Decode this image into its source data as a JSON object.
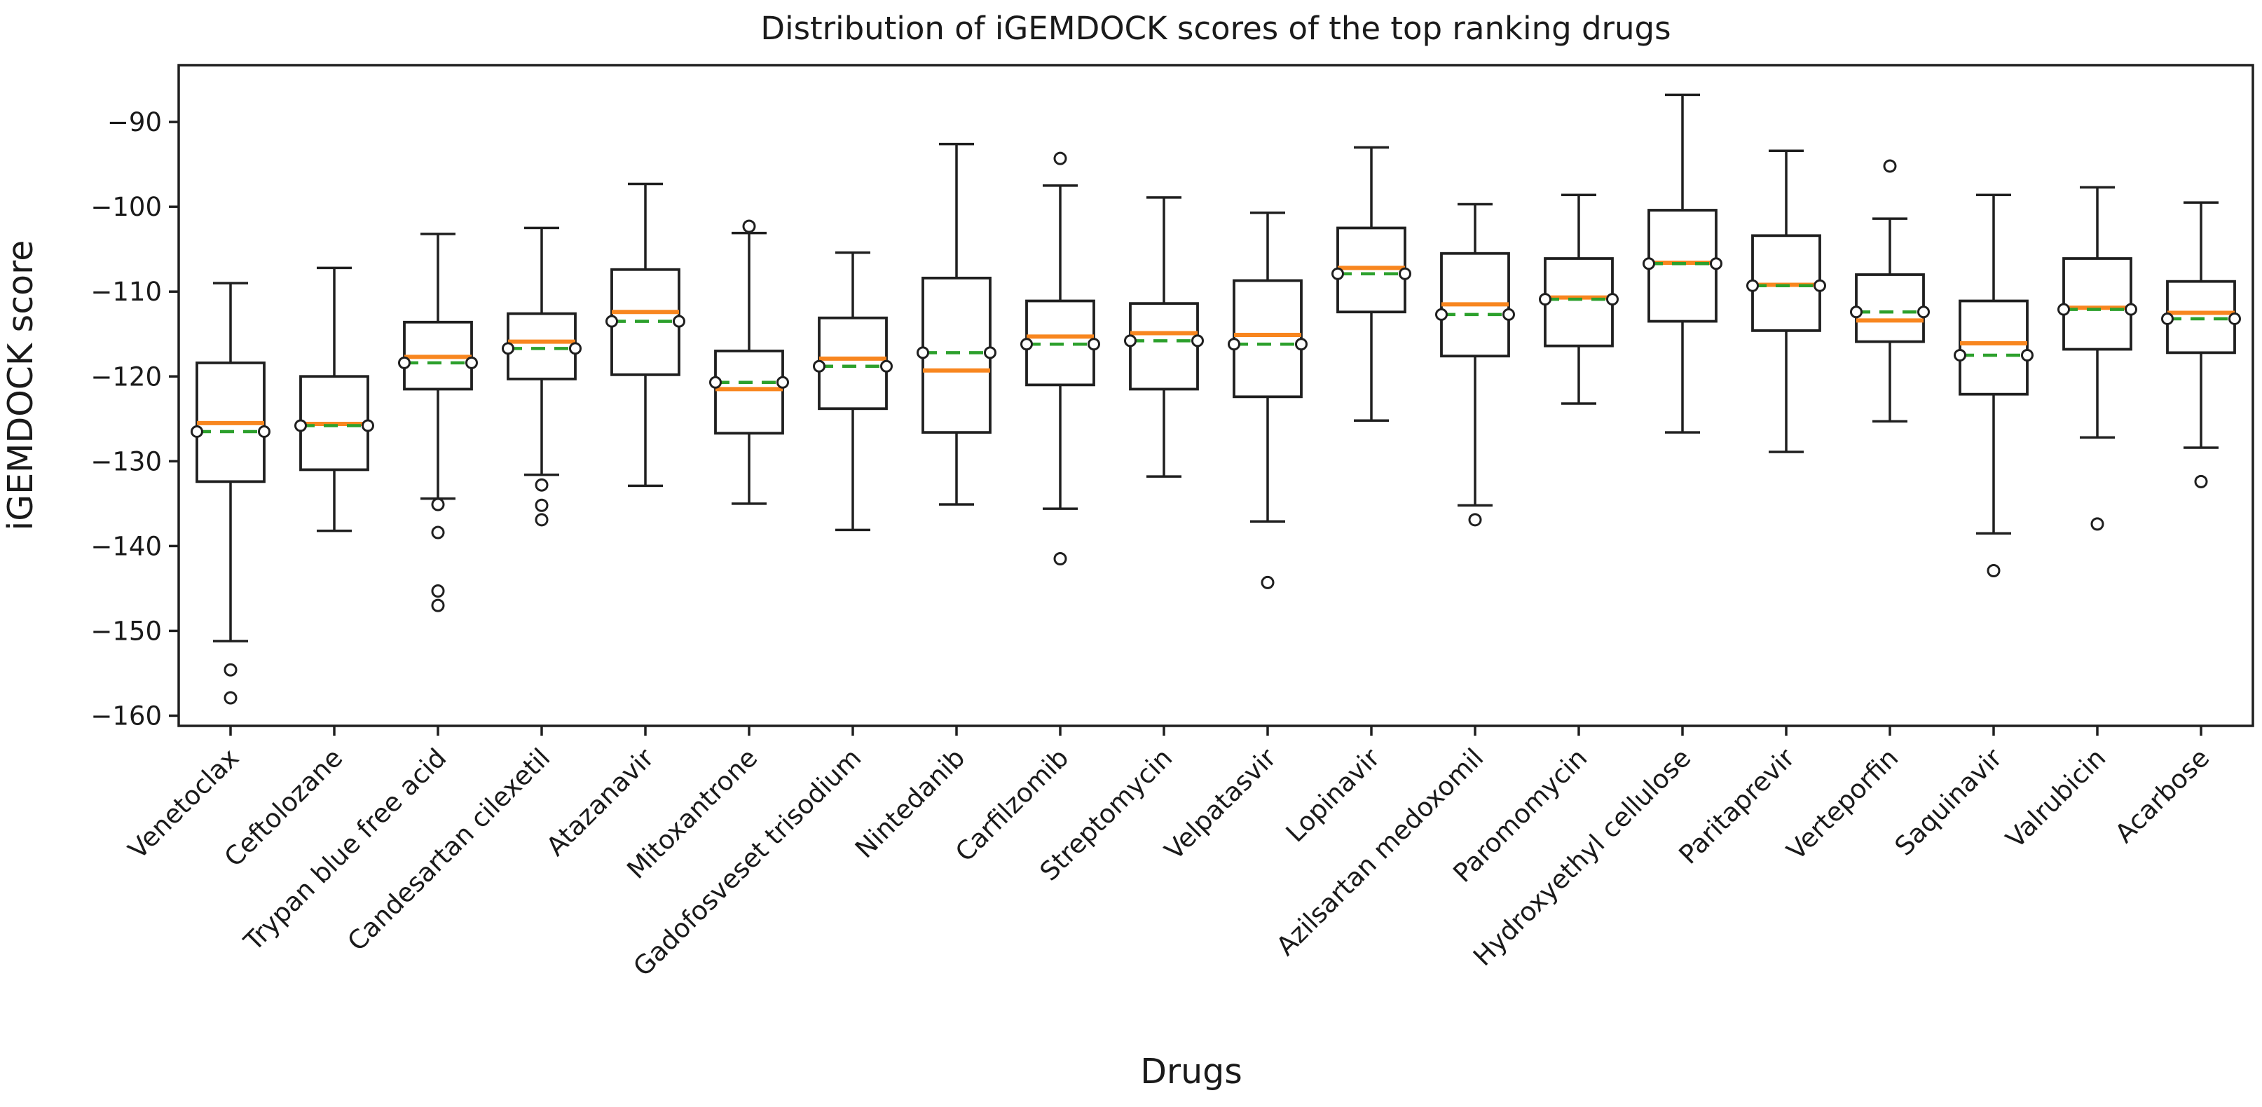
{
  "chart_data": {
    "type": "boxplot",
    "title": "Distribution of iGEMDOCK scores of the top ranking drugs",
    "xlabel": "Drugs",
    "ylabel": "iGEMDOCK score",
    "ylim": [
      -161.2,
      -83.3
    ],
    "yticks": [
      -90,
      -100,
      -110,
      -120,
      -130,
      -140,
      -150,
      -160
    ],
    "grid": false,
    "legend": null,
    "x_tick_rotation_deg": 45,
    "colors": {
      "box_edge": "#1f1f1f",
      "median": "#f8861f",
      "mean": "#2ca02c",
      "outlier_edge": "#1f1f1f",
      "text": "#1a1a1a"
    },
    "style_notes": "median = solid orange line; mean = green dashed line with small open circle markers at box edges; outliers = open circles; no grid; all four spines drawn",
    "boxes": [
      {
        "label": "Venetoclax",
        "whislo": -151.2,
        "q1": -132.4,
        "med": -125.5,
        "mean": -126.5,
        "q3": -118.4,
        "whishi": -109.0,
        "outliers": [
          -154.6,
          -157.9
        ]
      },
      {
        "label": "Ceftolozane",
        "whislo": -138.2,
        "q1": -131.0,
        "med": -125.6,
        "mean": -125.8,
        "q3": -120.0,
        "whishi": -107.2,
        "outliers": []
      },
      {
        "label": "Trypan blue free acid",
        "whislo": -134.4,
        "q1": -121.5,
        "med": -117.7,
        "mean": -118.4,
        "q3": -113.6,
        "whishi": -103.2,
        "outliers": [
          -135.1,
          -138.4,
          -145.3,
          -147.0
        ]
      },
      {
        "label": "Candesartan cilexetil",
        "whislo": -131.6,
        "q1": -120.3,
        "med": -115.9,
        "mean": -116.7,
        "q3": -112.6,
        "whishi": -102.5,
        "outliers": [
          -132.8,
          -135.2,
          -136.9
        ]
      },
      {
        "label": "Atazanavir",
        "whislo": -132.9,
        "q1": -119.8,
        "med": -112.4,
        "mean": -113.5,
        "q3": -107.4,
        "whishi": -97.3,
        "outliers": []
      },
      {
        "label": "Mitoxantrone",
        "whislo": -135.0,
        "q1": -126.7,
        "med": -121.5,
        "mean": -120.7,
        "q3": -117.0,
        "whishi": -103.1,
        "outliers": [
          -102.3
        ]
      },
      {
        "label": "Gadofosveset trisodium",
        "whislo": -138.1,
        "q1": -123.8,
        "med": -117.9,
        "mean": -118.8,
        "q3": -113.1,
        "whishi": -105.4,
        "outliers": []
      },
      {
        "label": "Nintedanib",
        "whislo": -135.1,
        "q1": -126.6,
        "med": -119.3,
        "mean": -117.2,
        "q3": -108.4,
        "whishi": -92.6,
        "outliers": []
      },
      {
        "label": "Carfilzomib",
        "whislo": -135.6,
        "q1": -121.0,
        "med": -115.3,
        "mean": -116.2,
        "q3": -111.1,
        "whishi": -97.5,
        "outliers": [
          -94.3,
          -141.5
        ]
      },
      {
        "label": "Streptomycin",
        "whislo": -131.8,
        "q1": -121.5,
        "med": -114.9,
        "mean": -115.8,
        "q3": -111.4,
        "whishi": -98.9,
        "outliers": []
      },
      {
        "label": "Velpatasvir",
        "whislo": -137.1,
        "q1": -122.4,
        "med": -115.1,
        "mean": -116.2,
        "q3": -108.7,
        "whishi": -100.7,
        "outliers": [
          -144.3
        ]
      },
      {
        "label": "Lopinavir",
        "whislo": -125.2,
        "q1": -112.4,
        "med": -107.2,
        "mean": -107.9,
        "q3": -102.5,
        "whishi": -93.0,
        "outliers": []
      },
      {
        "label": "Azilsartan medoxomil",
        "whislo": -135.2,
        "q1": -117.6,
        "med": -111.5,
        "mean": -112.7,
        "q3": -105.5,
        "whishi": -99.7,
        "outliers": [
          -136.9
        ]
      },
      {
        "label": "Paromomycin",
        "whislo": -123.2,
        "q1": -116.4,
        "med": -110.7,
        "mean": -110.9,
        "q3": -106.1,
        "whishi": -98.6,
        "outliers": []
      },
      {
        "label": "Hydroxyethyl cellulose",
        "whislo": -126.6,
        "q1": -113.5,
        "med": -106.6,
        "mean": -106.7,
        "q3": -100.4,
        "whishi": -86.8,
        "outliers": []
      },
      {
        "label": "Paritaprevir",
        "whislo": -128.9,
        "q1": -114.6,
        "med": -109.2,
        "mean": -109.3,
        "q3": -103.4,
        "whishi": -93.4,
        "outliers": []
      },
      {
        "label": "Verteporfin",
        "whislo": -125.3,
        "q1": -115.9,
        "med": -113.4,
        "mean": -112.4,
        "q3": -108.0,
        "whishi": -101.4,
        "outliers": [
          -95.2
        ]
      },
      {
        "label": "Saquinavir",
        "whislo": -138.5,
        "q1": -122.1,
        "med": -116.1,
        "mean": -117.5,
        "q3": -111.1,
        "whishi": -98.6,
        "outliers": [
          -142.9
        ]
      },
      {
        "label": "Valrubicin",
        "whislo": -127.2,
        "q1": -116.8,
        "med": -111.9,
        "mean": -112.1,
        "q3": -106.1,
        "whishi": -97.7,
        "outliers": [
          -137.4
        ]
      },
      {
        "label": "Acarbose",
        "whislo": -128.4,
        "q1": -117.2,
        "med": -112.5,
        "mean": -113.2,
        "q3": -108.8,
        "whishi": -99.5,
        "outliers": [
          -132.4
        ]
      }
    ]
  }
}
